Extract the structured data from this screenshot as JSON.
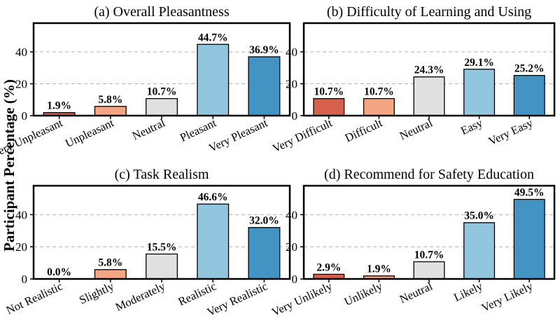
{
  "ylabel": "Participant Percentage (%)",
  "colors": [
    "#d6604d",
    "#f4a582",
    "#e0e0e0",
    "#92c5de",
    "#4393c3"
  ],
  "chart_data": [
    {
      "type": "bar",
      "title": "(a) Overall Pleasantness",
      "categories": [
        "Very Unpleasant",
        "Unpleasant",
        "Neutral",
        "Pleasant",
        "Very Pleasant"
      ],
      "values": [
        1.9,
        5.8,
        10.7,
        44.7,
        36.9
      ],
      "labels": [
        "1.9%",
        "5.8%",
        "10.7%",
        "44.7%",
        "36.9%"
      ],
      "ylim": [
        0,
        58
      ],
      "yticks": [
        0,
        20,
        40
      ],
      "grid": true
    },
    {
      "type": "bar",
      "title": "(b) Difficulty of Learning and Using",
      "categories": [
        "Very Difficult",
        "Difficult",
        "Neutral",
        "Easy",
        "Very Easy"
      ],
      "values": [
        10.7,
        10.7,
        24.3,
        29.1,
        25.2
      ],
      "labels": [
        "10.7%",
        "10.7%",
        "24.3%",
        "29.1%",
        "25.2%"
      ],
      "ylim": [
        0,
        58
      ],
      "yticks": [
        0,
        20,
        40
      ],
      "grid": true
    },
    {
      "type": "bar",
      "title": "(c) Task Realism",
      "categories": [
        "Not Realistic",
        "Slightly",
        "Moderately",
        "Realistic",
        "Very Realistic"
      ],
      "values": [
        0.0,
        5.8,
        15.5,
        46.6,
        32.0
      ],
      "labels": [
        "0.0%",
        "5.8%",
        "15.5%",
        "46.6%",
        "32.0%"
      ],
      "ylim": [
        0,
        58
      ],
      "yticks": [
        0,
        20,
        40
      ],
      "grid": true
    },
    {
      "type": "bar",
      "title": "(d) Recommend for Safety Education",
      "categories": [
        "Very Unlikely",
        "Unlikely",
        "Neutral",
        "Likely",
        "Very Likely"
      ],
      "values": [
        2.9,
        1.9,
        10.7,
        35.0,
        49.5
      ],
      "labels": [
        "2.9%",
        "1.9%",
        "10.7%",
        "35.0%",
        "49.5%"
      ],
      "ylim": [
        0,
        58
      ],
      "yticks": [
        0,
        20,
        40
      ],
      "grid": true
    }
  ]
}
